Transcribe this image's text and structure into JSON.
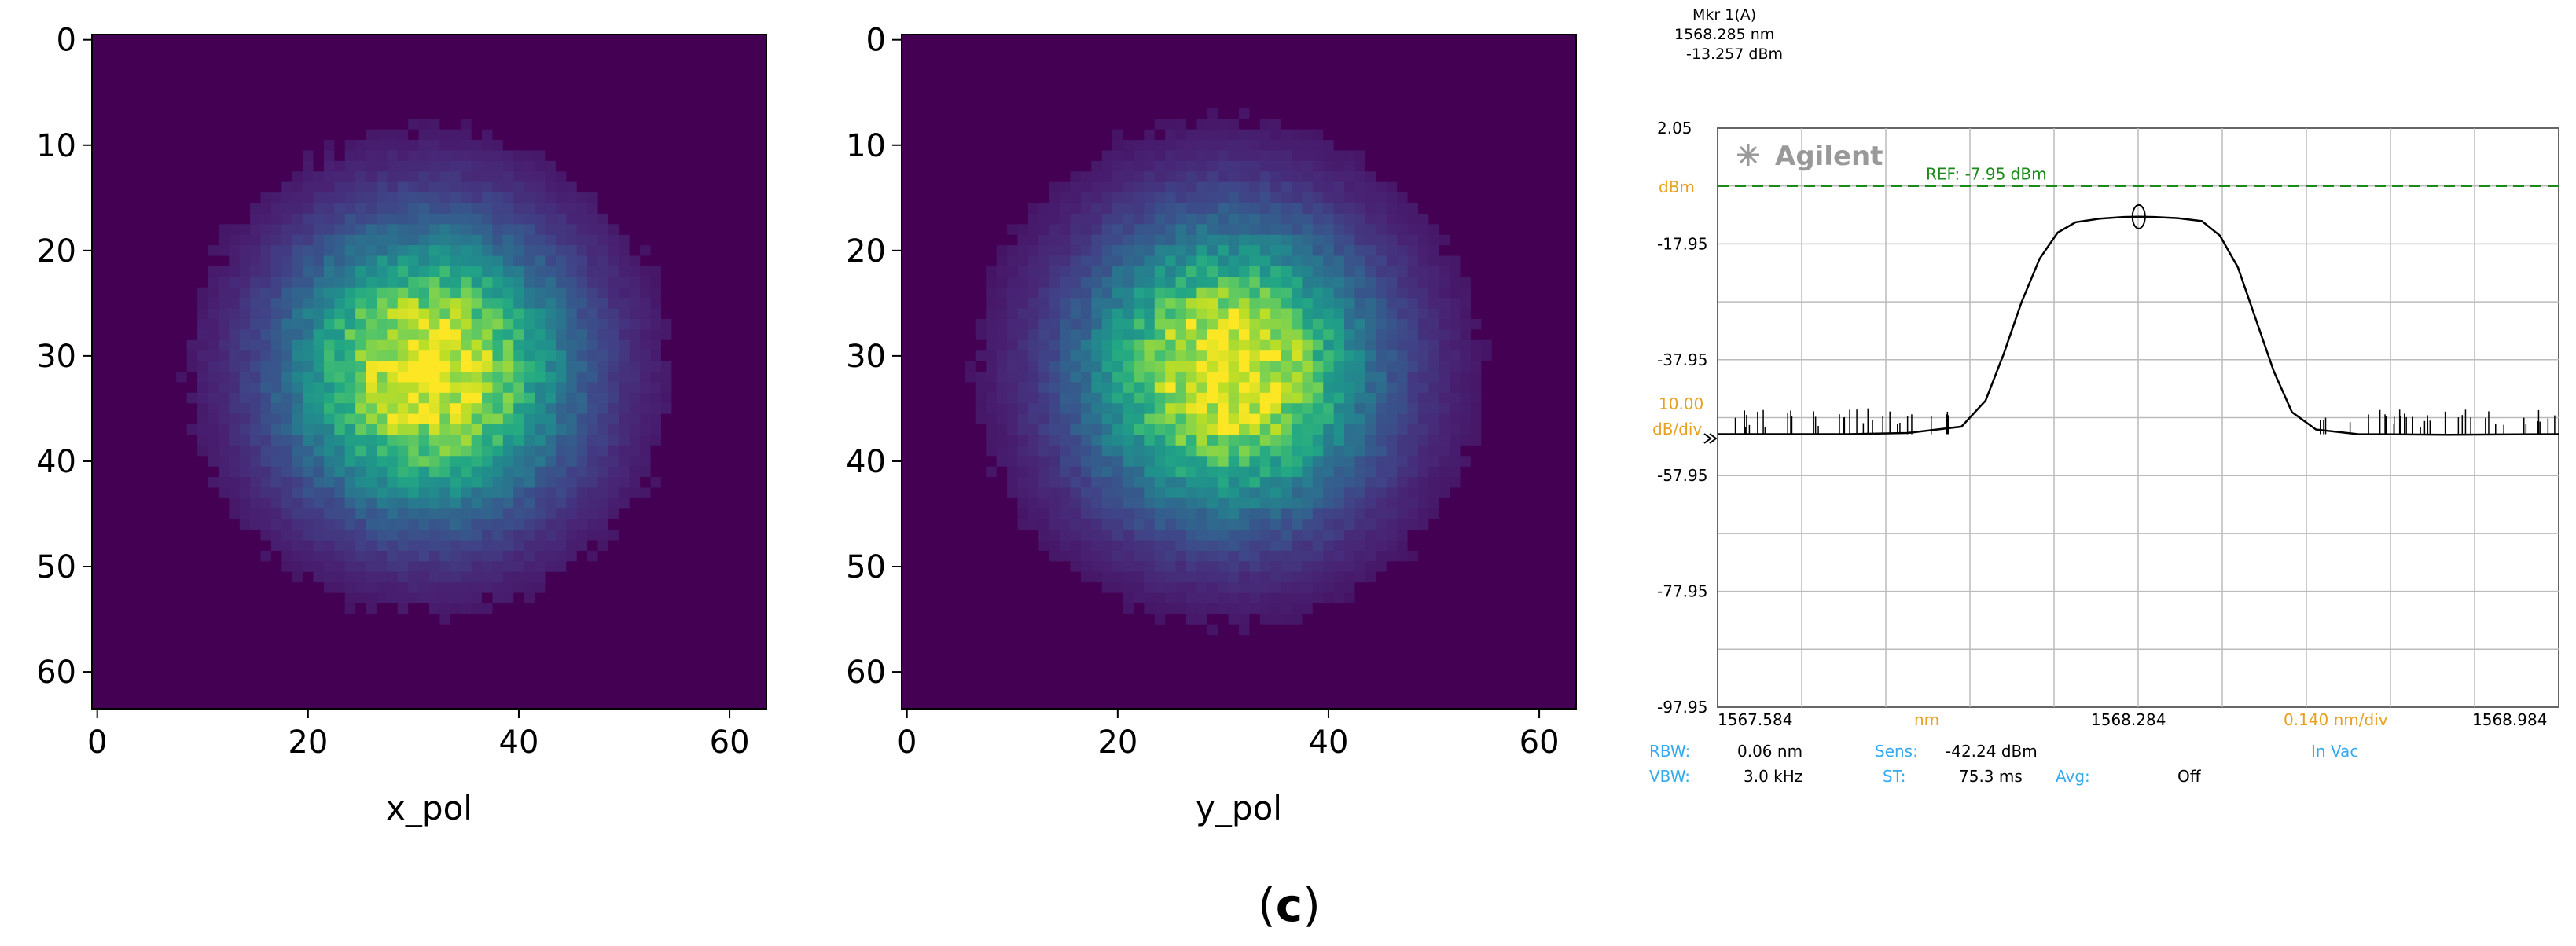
{
  "figure": {
    "caption_open": "(",
    "caption_letter": "c",
    "caption_close": ")"
  },
  "chart_data": [
    {
      "type": "heatmap",
      "title": "",
      "xlabel": "x_pol",
      "ylabel": "",
      "size": [
        64,
        64
      ],
      "xlim": [
        -0.5,
        63.5
      ],
      "ylim": [
        63.5,
        -0.5
      ],
      "x_ticks": [
        0,
        20,
        40,
        60
      ],
      "y_ticks": [
        0,
        10,
        20,
        30,
        40,
        50,
        60
      ],
      "colormap": "viridis",
      "colors": {
        "background": "#440154",
        "peak": "#fde725"
      },
      "distribution": {
        "center_x": 31.5,
        "center_y": 31.5,
        "sigma": 9.0,
        "edge_radius": 22,
        "peak_level": 1.0
      }
    },
    {
      "type": "heatmap",
      "title": "",
      "xlabel": "y_pol",
      "ylabel": "",
      "size": [
        64,
        64
      ],
      "xlim": [
        -0.5,
        63.5
      ],
      "ylim": [
        63.5,
        -0.5
      ],
      "x_ticks": [
        0,
        20,
        40,
        60
      ],
      "y_ticks": [
        0,
        10,
        20,
        30,
        40,
        50,
        60
      ],
      "colormap": "viridis",
      "colors": {
        "background": "#440154",
        "peak": "#fde725"
      },
      "distribution": {
        "center_x": 30.5,
        "center_y": 31.5,
        "sigma": 9.2,
        "edge_radius": 23,
        "peak_level": 1.0
      }
    },
    {
      "type": "line",
      "instrument": "Agilent",
      "xunit": "nm",
      "yunit": "dBm",
      "xlim": [
        1567.584,
        1568.984
      ],
      "ylim": [
        -97.95,
        2.05
      ],
      "x_tick_labels": [
        "1567.584",
        "1568.284",
        "1568.984"
      ],
      "y_tick_labels": [
        "2.05",
        "-17.95",
        "-37.95",
        "-57.95",
        "-77.95",
        "-97.95"
      ],
      "y_axis_unit_label": "dBm",
      "scale_value": "10.00",
      "scale_unit": "dB/div",
      "x_scale": "0.140 nm/div",
      "reference": {
        "label": "REF: -7.95 dBm",
        "value": -7.95
      },
      "marker": {
        "title": "Mkr 1(A)",
        "x_text": "1568.285 nm",
        "y_text": "-13.257 dBm",
        "x": 1568.285,
        "y": -13.257
      },
      "grid": true,
      "series": [
        {
          "x": [
            1567.584,
            1567.8,
            1567.9,
            1567.99,
            1568.03,
            1568.06,
            1568.09,
            1568.12,
            1568.15,
            1568.18,
            1568.22,
            1568.26,
            1568.285,
            1568.31,
            1568.35,
            1568.39,
            1568.42,
            1568.45,
            1568.48,
            1568.51,
            1568.54,
            1568.58,
            1568.65,
            1568.8,
            1568.984
          ],
          "y": [
            -50.8,
            -50.8,
            -50.6,
            -49.5,
            -45.0,
            -37.0,
            -28.0,
            -20.5,
            -16.0,
            -14.2,
            -13.6,
            -13.3,
            -13.257,
            -13.3,
            -13.5,
            -14.0,
            -16.5,
            -22.0,
            -31.0,
            -40.0,
            -47.0,
            -50.0,
            -50.8,
            -50.9,
            -50.8
          ]
        }
      ],
      "settings": {
        "rbw_label": "RBW:",
        "rbw_value": "0.06 nm",
        "sens_label": "Sens:",
        "sens_value": "-42.24 dBm",
        "vbw_label": "VBW:",
        "vbw_value": "3.0 kHz",
        "st_label": "ST:",
        "st_value": "75.3 ms",
        "avg_label": "Avg:",
        "avg_value": "Off",
        "medium": "In Vac"
      },
      "colors": {
        "trace": "#000000",
        "reference": "#1a8a1a",
        "grid": "#bbbbbb",
        "accent": "#e8a020",
        "info": "#33aaee"
      }
    }
  ]
}
